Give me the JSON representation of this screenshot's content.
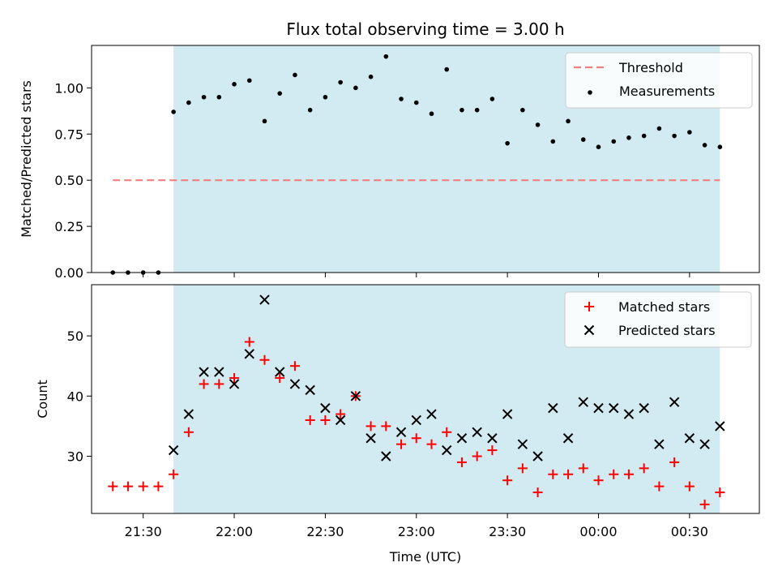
{
  "chart_data": [
    {
      "type": "scatter",
      "title": "Flux total observing time = 3.00 h",
      "xlabel": "",
      "ylabel": "Matched/Predicted stars",
      "ylim": [
        0,
        1.23
      ],
      "yticks": [
        "0.00",
        "0.25",
        "0.50",
        "0.75",
        "1.00"
      ],
      "ytick_values": [
        0,
        0.25,
        0.5,
        0.75,
        1.0
      ],
      "xlim": [
        "21:13",
        "00:53"
      ],
      "shaded_range": [
        "21:40",
        "00:40"
      ],
      "shade_color": "#add8e6",
      "legend": "top-right",
      "threshold": {
        "name": "Threshold",
        "value": 0.5,
        "x": [
          "21:20",
          "00:40"
        ],
        "color": "#f08080"
      },
      "series": [
        {
          "name": "Measurements",
          "marker": "dot",
          "color": "#000000",
          "x": [
            "21:20",
            "21:25",
            "21:30",
            "21:35",
            "21:40",
            "21:45",
            "21:50",
            "21:55",
            "22:00",
            "22:05",
            "22:10",
            "22:15",
            "22:20",
            "22:25",
            "22:30",
            "22:35",
            "22:40",
            "22:45",
            "22:50",
            "22:55",
            "23:00",
            "23:05",
            "23:10",
            "23:15",
            "23:20",
            "23:25",
            "23:30",
            "23:35",
            "23:40",
            "23:45",
            "23:50",
            "23:55",
            "00:00",
            "00:05",
            "00:10",
            "00:15",
            "00:20",
            "00:25",
            "00:30",
            "00:35",
            "00:40"
          ],
          "y": [
            0.0,
            0.0,
            0.0,
            0.0,
            0.87,
            0.92,
            0.95,
            0.95,
            1.02,
            1.04,
            0.82,
            0.97,
            1.07,
            0.88,
            0.95,
            1.03,
            1.0,
            1.06,
            1.17,
            0.94,
            0.92,
            0.86,
            1.1,
            0.88,
            0.88,
            0.94,
            0.7,
            0.88,
            0.8,
            0.71,
            0.82,
            0.72,
            0.68,
            0.71,
            0.73,
            0.74,
            0.78,
            0.74,
            0.76,
            0.69,
            0.68
          ]
        }
      ]
    },
    {
      "type": "scatter",
      "title": "",
      "xlabel": "Time (UTC)",
      "ylabel": "Count",
      "ylim": [
        20.5,
        58.5
      ],
      "yticks": [
        "30",
        "40",
        "50"
      ],
      "ytick_values": [
        30,
        40,
        50
      ],
      "xlim": [
        "21:13",
        "00:53"
      ],
      "xticks": [
        "21:30",
        "22:00",
        "22:30",
        "23:00",
        "23:30",
        "00:00",
        "00:30"
      ],
      "shaded_range": [
        "21:40",
        "00:40"
      ],
      "shade_color": "#add8e6",
      "legend": "top-right",
      "series": [
        {
          "name": "Matched stars",
          "marker": "plus",
          "color": "#ff0000",
          "x": [
            "21:20",
            "21:25",
            "21:30",
            "21:35",
            "21:40",
            "21:45",
            "21:50",
            "21:55",
            "22:00",
            "22:05",
            "22:10",
            "22:15",
            "22:20",
            "22:25",
            "22:30",
            "22:35",
            "22:40",
            "22:45",
            "22:50",
            "22:55",
            "23:00",
            "23:05",
            "23:10",
            "23:15",
            "23:20",
            "23:25",
            "23:30",
            "23:35",
            "23:40",
            "23:45",
            "23:50",
            "23:55",
            "00:00",
            "00:05",
            "00:10",
            "00:15",
            "00:20",
            "00:25",
            "00:30",
            "00:35",
            "00:40"
          ],
          "y": [
            25,
            25,
            25,
            25,
            27,
            34,
            42,
            42,
            43,
            49,
            46,
            43,
            45,
            36,
            36,
            37,
            40,
            35,
            35,
            32,
            33,
            32,
            34,
            29,
            30,
            31,
            26,
            28,
            24,
            27,
            27,
            28,
            26,
            27,
            27,
            28,
            25,
            29,
            25,
            22,
            24
          ]
        },
        {
          "name": "Predicted stars",
          "marker": "x",
          "color": "#000000",
          "x": [
            "21:40",
            "21:45",
            "21:50",
            "21:55",
            "22:00",
            "22:05",
            "22:10",
            "22:15",
            "22:20",
            "22:25",
            "22:30",
            "22:35",
            "22:40",
            "22:45",
            "22:50",
            "22:55",
            "23:00",
            "23:05",
            "23:10",
            "23:15",
            "23:20",
            "23:25",
            "23:30",
            "23:35",
            "23:40",
            "23:45",
            "23:50",
            "23:55",
            "00:00",
            "00:05",
            "00:10",
            "00:15",
            "00:20",
            "00:25",
            "00:30",
            "00:35",
            "00:40"
          ],
          "y": [
            31,
            37,
            44,
            44,
            42,
            47,
            56,
            44,
            42,
            41,
            38,
            36,
            40,
            33,
            30,
            34,
            36,
            37,
            31,
            33,
            34,
            33,
            37,
            32,
            30,
            38,
            33,
            39,
            38,
            38,
            37,
            38,
            32,
            39,
            33,
            32,
            35
          ]
        }
      ]
    }
  ]
}
